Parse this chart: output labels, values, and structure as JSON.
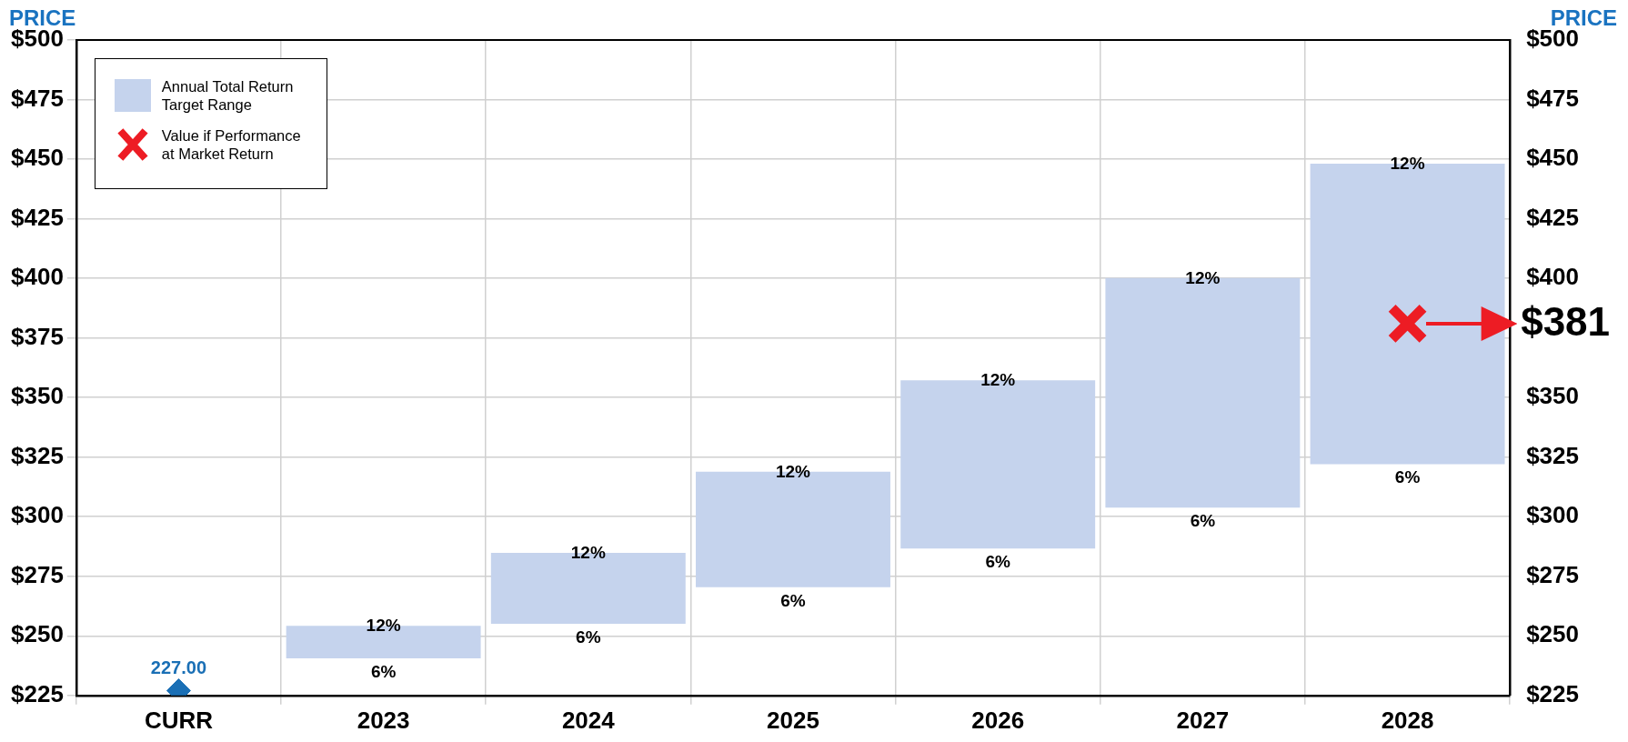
{
  "chart_data": {
    "type": "bar",
    "ylabel": "PRICE",
    "y2label": "PRICE",
    "categories": [
      "CURR",
      "2023",
      "2024",
      "2025",
      "2026",
      "2027",
      "2028"
    ],
    "series": [
      {
        "name": "Annual Total Return Target Range",
        "type": "bar",
        "color": "#c5d3ed",
        "base": [
          null,
          240.6,
          255.1,
          270.4,
          286.6,
          303.8,
          322.0
        ],
        "values": [
          null,
          13.6,
          29.7,
          48.5,
          70.6,
          96.3,
          126.1
        ]
      },
      {
        "type": "scatter",
        "color": "#1a6fb5",
        "values": [
          227,
          null,
          null,
          null,
          null,
          null,
          null
        ],
        "marker": "diamond",
        "value_labels": [
          "227.00",
          null,
          null,
          null,
          null,
          null,
          null
        ]
      },
      {
        "name": "Value if Performance at Market Return",
        "type": "scatter",
        "color": "#ed1c24",
        "values": [
          null,
          null,
          null,
          null,
          null,
          null,
          381
        ],
        "marker": "cross"
      }
    ],
    "annotations": [
      {
        "text": "12%",
        "x": "2023",
        "y": 254.2
      },
      {
        "text": "6%",
        "x": "2023",
        "y": 240.6
      },
      {
        "text": "12%",
        "x": "2024",
        "y": 284.8
      },
      {
        "text": "6%",
        "x": "2024",
        "y": 255.1
      },
      {
        "text": "12%",
        "x": "2025",
        "y": 318.9
      },
      {
        "text": "6%",
        "x": "2025",
        "y": 270.4
      },
      {
        "text": "12%",
        "x": "2026",
        "y": 357.2
      },
      {
        "text": "6%",
        "x": "2026",
        "y": 286.6
      },
      {
        "text": "12%",
        "x": "2027",
        "y": 400.1
      },
      {
        "text": "6%",
        "x": "2027",
        "y": 303.8
      },
      {
        "text": "12%",
        "x": "2028",
        "y": 448.1
      },
      {
        "text": "6%",
        "x": "2028",
        "y": 322.0
      },
      {
        "text": "$381",
        "x": "2028",
        "y": 381
      }
    ],
    "ylim": [
      225,
      500
    ],
    "yticks": [
      {
        "value": 225,
        "label": "$225"
      },
      {
        "value": 250,
        "label": "$250"
      },
      {
        "value": 275,
        "label": "$275"
      },
      {
        "value": 300,
        "label": "$300"
      },
      {
        "value": 325,
        "label": "$325"
      },
      {
        "value": 350,
        "label": "$350"
      },
      {
        "value": 375,
        "label": "$375"
      },
      {
        "value": 400,
        "label": "$400"
      },
      {
        "value": 425,
        "label": "$425"
      },
      {
        "value": 450,
        "label": "$450"
      },
      {
        "value": 475,
        "label": "$475"
      },
      {
        "value": 500,
        "label": "$500"
      }
    ],
    "y2lim": [
      225,
      500
    ],
    "y2ticks": [
      {
        "value": 225,
        "label": "$225"
      },
      {
        "value": 250,
        "label": "$250"
      },
      {
        "value": 275,
        "label": "$275"
      },
      {
        "value": 300,
        "label": "$300"
      },
      {
        "value": 325,
        "label": "$325"
      },
      {
        "value": 350,
        "label": "$350"
      },
      {
        "value": 400,
        "label": "$400"
      },
      {
        "value": 425,
        "label": "$425"
      },
      {
        "value": 450,
        "label": "$450"
      },
      {
        "value": 475,
        "label": "$475"
      },
      {
        "value": 500,
        "label": "$500"
      }
    ],
    "grid": true,
    "legend": "top left"
  }
}
